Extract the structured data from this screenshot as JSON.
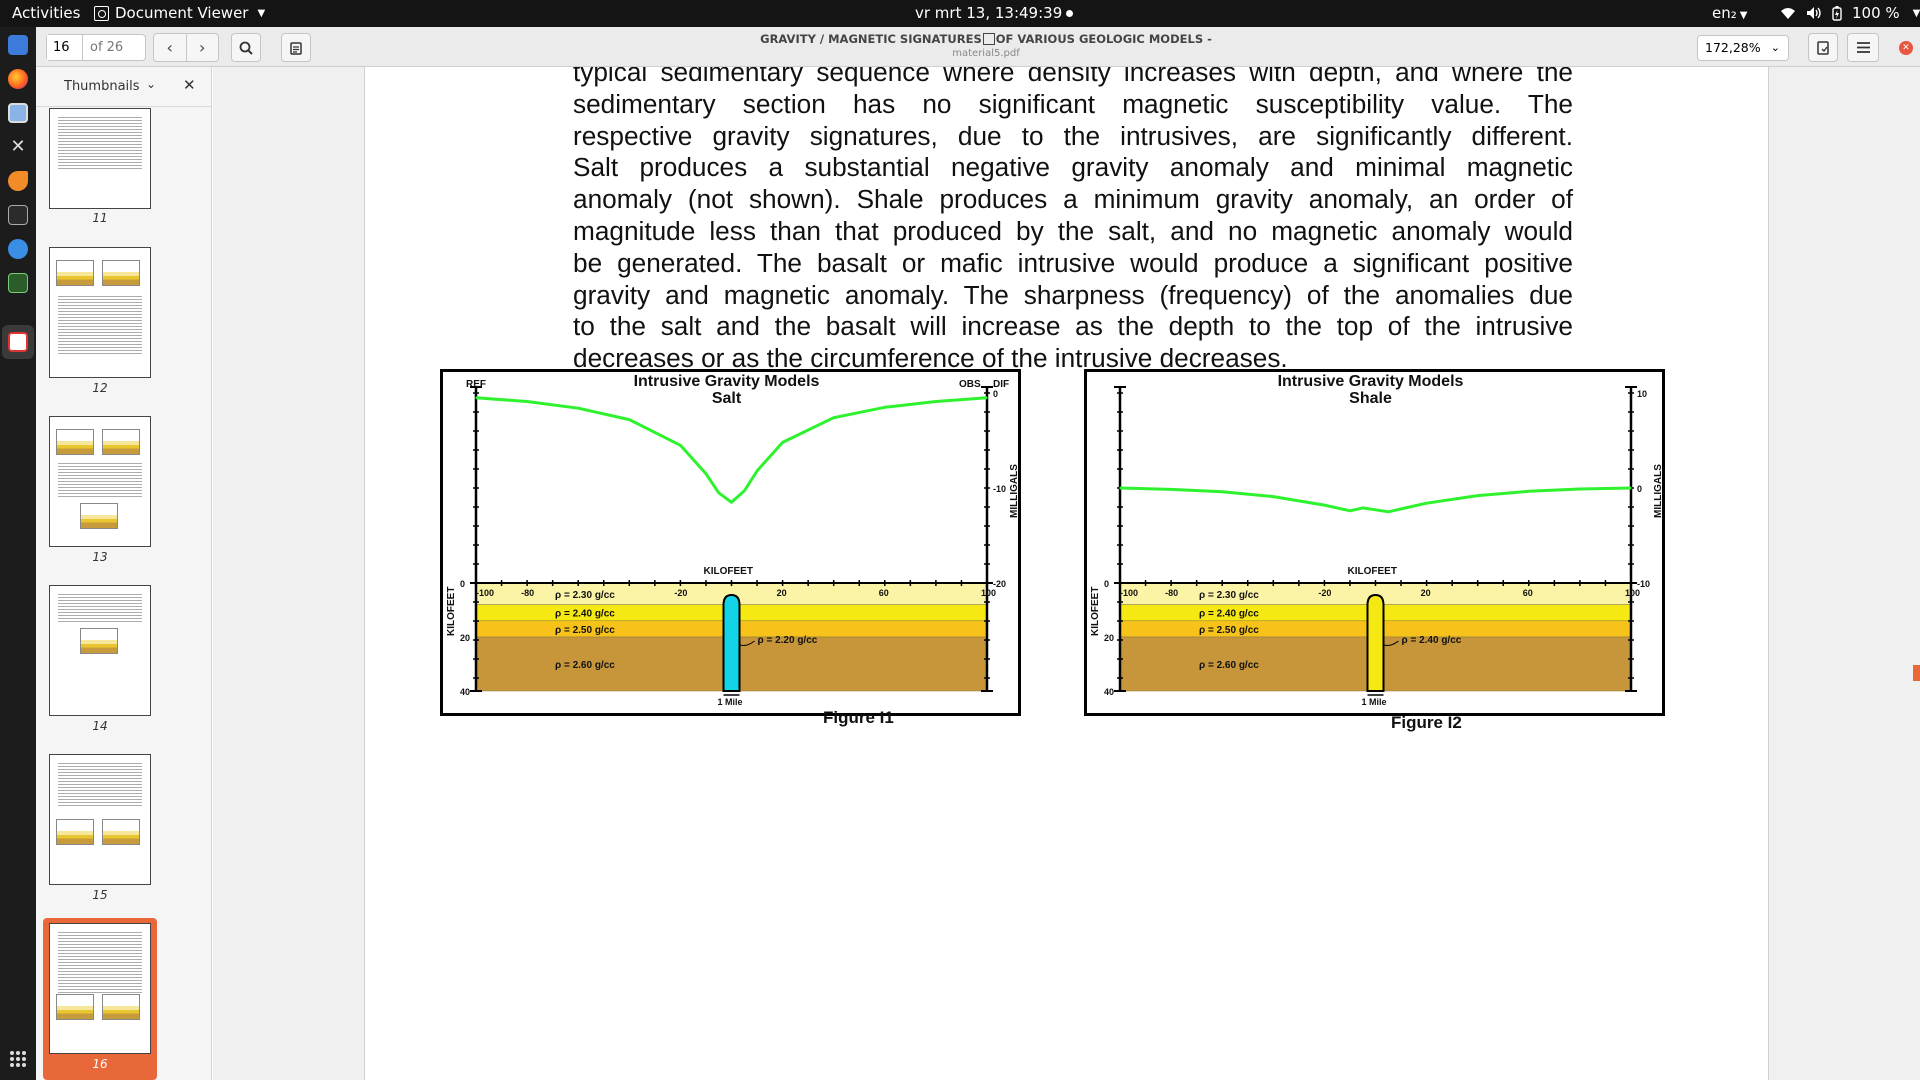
{
  "topbar": {
    "activities": "Activities",
    "app_name": "Document Viewer",
    "clock": "vr mrt 13, 13:49:39",
    "language": "en₂",
    "battery": "100 %"
  },
  "toolbar": {
    "page_current": "16",
    "page_total": "of 26",
    "doc_title": "GRAVITY / MAGNETIC SIGNATURES OF VARIOUS GEOLOGIC MODELS -",
    "doc_title_part1": "GRAVITY / MAGNETIC SIGNATURES",
    "doc_title_part2": "OF VARIOUS GEOLOGIC MODELS -",
    "file_name": "material5.pdf",
    "zoom": "172,28%"
  },
  "sidebar": {
    "title": "Thumbnails",
    "thumbnails": [
      {
        "label": "11"
      },
      {
        "label": "12"
      },
      {
        "label": "13"
      },
      {
        "label": "14"
      },
      {
        "label": "15"
      },
      {
        "label": "16",
        "active": true
      }
    ]
  },
  "document": {
    "lines": [
      "typical sedimentary sequence where density increases with depth, and where the",
      "sedimentary section has no significant magnetic susceptibility value.   The",
      "respective gravity signatures, due to the intrusives, are significantly different.",
      "Salt produces a substantial negative gravity anomaly and minimal magnetic",
      "anomaly (not shown).  Shale produces a minimum gravity anomaly, an order of",
      "magnitude less than that produced by the salt, and no magnetic anomaly would",
      "be generated.  The basalt or mafic intrusive would produce a significant positive",
      "gravity and magnetic anomaly.  The sharpness (frequency) of the anomalies due",
      "to the salt and the basalt will increase as the depth to the top of the intrusive",
      "decreases or as the circumference of the intrusive decreases."
    ]
  },
  "chart_data": [
    {
      "type": "line",
      "title": "Intrusive Gravity Models",
      "subtitle": "Salt",
      "caption": "Figure I1",
      "xlabel": "KILOFEET",
      "ylabel": "MILLIGALS",
      "depth_label": "KILOFEET",
      "ref_label": "REF",
      "obs_label": "OBS",
      "dif_label": "DIF",
      "scale_label": "1 Mile",
      "x_ticks": [
        "-100",
        "-80",
        "-20",
        "20",
        "60",
        "100"
      ],
      "gravity_ticks": [
        "0",
        "-10",
        "-20"
      ],
      "depth_ticks": [
        "0",
        "20",
        "40"
      ],
      "xlim": [
        -100,
        100
      ],
      "ylim": [
        -20,
        0
      ],
      "series": [
        {
          "x": [
            -100,
            -80,
            -60,
            -40,
            -20,
            -10,
            -5,
            0,
            5,
            10,
            20,
            40,
            60,
            80,
            100
          ],
          "y": [
            -0.5,
            -0.9,
            -1.6,
            -2.8,
            -5.5,
            -8.5,
            -10.5,
            -11.5,
            -10.3,
            -8.2,
            -5.2,
            -2.6,
            -1.5,
            -0.9,
            -0.5
          ]
        }
      ],
      "layers": [
        {
          "label": "ρ = 2.30 g/cc",
          "color": "#fbf3a5",
          "top": 0,
          "bottom": 8
        },
        {
          "label": "ρ = 2.40 g/cc",
          "color": "#f6e813",
          "top": 8,
          "bottom": 14
        },
        {
          "label": "ρ = 2.50 g/cc",
          "color": "#f7c21a",
          "top": 14,
          "bottom": 20
        },
        {
          "label": "ρ = 2.60 g/cc",
          "color": "#c7963a",
          "top": 20,
          "bottom": 40
        }
      ],
      "intrusive": {
        "label": "ρ = 2.20 g/cc",
        "color": "#12d4e6"
      }
    },
    {
      "type": "line",
      "title": "Intrusive Gravity Models",
      "subtitle": "Shale",
      "caption": "Figure I2",
      "xlabel": "KILOFEET",
      "ylabel": "MILLIGALS",
      "depth_label": "KILOFEET",
      "scale_label": "1 Mile",
      "x_ticks": [
        "-100",
        "-80",
        "-20",
        "20",
        "60",
        "100"
      ],
      "gravity_ticks": [
        "10",
        "0",
        "-10"
      ],
      "depth_ticks": [
        "0",
        "20",
        "40"
      ],
      "xlim": [
        -100,
        100
      ],
      "ylim": [
        -10,
        10
      ],
      "series": [
        {
          "x": [
            -100,
            -80,
            -60,
            -40,
            -20,
            -10,
            -5,
            0,
            5,
            10,
            20,
            40,
            60,
            80,
            100
          ],
          "y": [
            0,
            -0.15,
            -0.4,
            -0.9,
            -1.8,
            -2.4,
            -2.1,
            -2.3,
            -2.5,
            -2.2,
            -1.6,
            -0.8,
            -0.35,
            -0.1,
            0
          ]
        }
      ],
      "layers": [
        {
          "label": "ρ = 2.30 g/cc",
          "color": "#fbf3a5",
          "top": 0,
          "bottom": 8
        },
        {
          "label": "ρ = 2.40 g/cc",
          "color": "#f6e813",
          "top": 8,
          "bottom": 14
        },
        {
          "label": "ρ = 2.50 g/cc",
          "color": "#f7c21a",
          "top": 14,
          "bottom": 20
        },
        {
          "label": "ρ = 2.60 g/cc",
          "color": "#c7963a",
          "top": 20,
          "bottom": 40
        }
      ],
      "intrusive": {
        "label": "ρ = 2.40 g/cc",
        "color": "#f6e813"
      }
    }
  ]
}
